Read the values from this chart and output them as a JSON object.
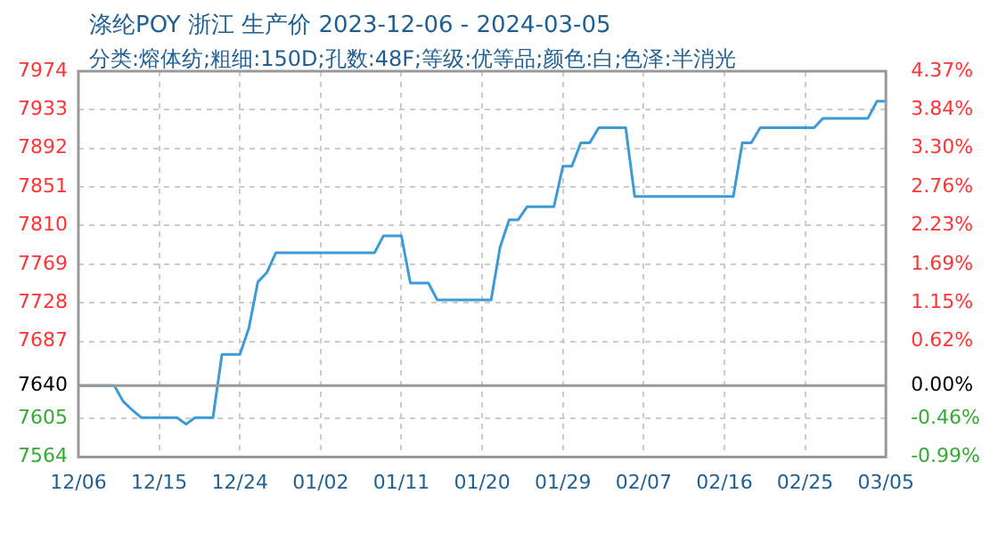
{
  "chart_data": {
    "type": "line",
    "title": "涤纶POY 浙江 生产价 2023-12-06 - 2024-03-05",
    "subtitle": "分类:熔体纺;粗细:150D;孔数:48F;等级:优等品;颜色:白;色泽:半消光",
    "x": [
      "2023-12-06",
      "2023-12-10",
      "2023-12-11",
      "2023-12-12",
      "2023-12-13",
      "2023-12-17",
      "2023-12-18",
      "2023-12-19",
      "2023-12-21",
      "2023-12-22",
      "2023-12-24",
      "2023-12-25",
      "2023-12-26",
      "2023-12-27",
      "2023-12-28",
      "2024-01-08",
      "2024-01-09",
      "2024-01-11",
      "2024-01-12",
      "2024-01-14",
      "2024-01-15",
      "2024-01-21",
      "2024-01-22",
      "2024-01-23",
      "2024-01-24",
      "2024-01-25",
      "2024-01-28",
      "2024-01-29",
      "2024-01-30",
      "2024-01-31",
      "2024-02-01",
      "2024-02-02",
      "2024-02-05",
      "2024-02-06",
      "2024-02-17",
      "2024-02-18",
      "2024-02-19",
      "2024-02-20",
      "2024-02-26",
      "2024-02-27",
      "2024-03-03",
      "2024-03-04",
      "2024-03-05"
    ],
    "series": [
      {
        "color": "#3d9ad6",
        "values": [
          7640,
          7640,
          7623,
          7614,
          7606,
          7606,
          7599,
          7606,
          7606,
          7673,
          7673,
          7701,
          7750,
          7760,
          7781,
          7781,
          7799,
          7799,
          7749,
          7749,
          7731,
          7731,
          7787,
          7816,
          7816,
          7830,
          7830,
          7873,
          7873,
          7898,
          7898,
          7914,
          7914,
          7841,
          7841,
          7898,
          7898,
          7914,
          7914,
          7924,
          7924,
          7942,
          7942
        ]
      }
    ],
    "xlim": [
      "2023-12-06",
      "2024-03-05"
    ],
    "xticks": [
      {
        "value": "2023-12-06",
        "label": "12/06"
      },
      {
        "value": "2023-12-15",
        "label": "12/15"
      },
      {
        "value": "2023-12-24",
        "label": "12/24"
      },
      {
        "value": "2024-01-02",
        "label": "01/02"
      },
      {
        "value": "2024-01-11",
        "label": "01/11"
      },
      {
        "value": "2024-01-20",
        "label": "01/20"
      },
      {
        "value": "2024-01-29",
        "label": "01/29"
      },
      {
        "value": "2024-02-07",
        "label": "02/07"
      },
      {
        "value": "2024-02-16",
        "label": "02/16"
      },
      {
        "value": "2024-02-25",
        "label": "02/25"
      },
      {
        "value": "2024-03-05",
        "label": "03/05"
      }
    ],
    "ylim": [
      7564,
      7974
    ],
    "yticks": [
      7564,
      7605,
      7640,
      7687,
      7728,
      7769,
      7810,
      7851,
      7892,
      7933,
      7974
    ],
    "y2lim": [
      -0.99,
      4.37
    ],
    "y2ticks": [
      {
        "value": -0.99,
        "label": "-0.99%"
      },
      {
        "value": -0.46,
        "label": "-0.46%"
      },
      {
        "value": 0,
        "label": "0.00%"
      },
      {
        "value": 0.62,
        "label": "0.62%"
      },
      {
        "value": 1.15,
        "label": "1.15%"
      },
      {
        "value": 1.69,
        "label": "1.69%"
      },
      {
        "value": 2.23,
        "label": "2.23%"
      },
      {
        "value": 2.76,
        "label": "2.76%"
      },
      {
        "value": 3.3,
        "label": "3.30%"
      },
      {
        "value": 3.84,
        "label": "3.84%"
      },
      {
        "value": 4.37,
        "label": "4.37%"
      }
    ],
    "ref_lines": [
      {
        "axis": "y",
        "value": 7640,
        "color": "#999999"
      }
    ],
    "grid": true,
    "legend": false,
    "marker": "none",
    "line_style": "solid"
  }
}
